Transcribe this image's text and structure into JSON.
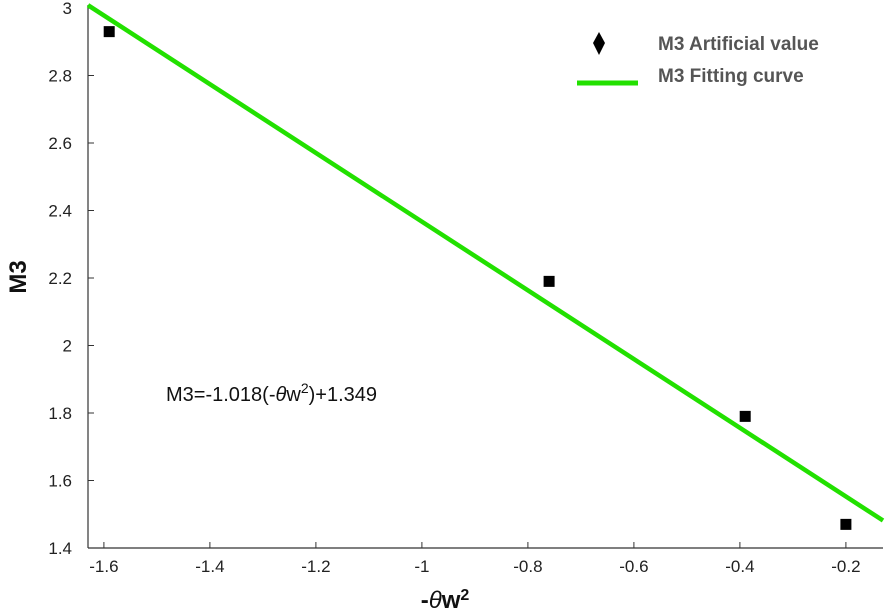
{
  "chart_data": {
    "type": "scatter",
    "title": "",
    "xlabel": "-θw",
    "xlabel_sup": "2",
    "ylabel": "M3",
    "xlim": [
      -1.63,
      -0.13
    ],
    "ylim": [
      1.4,
      3.0
    ],
    "xticks": [
      -1.6,
      -1.4,
      -1.2,
      -1,
      -0.8,
      -0.6,
      -0.4,
      -0.2
    ],
    "xtick_labels": [
      "-1.6",
      "-1.4",
      "-1.2",
      "-1",
      "-0.8",
      "-0.6",
      "-0.4",
      "-0.2"
    ],
    "yticks": [
      1.4,
      1.6,
      1.8,
      2.0,
      2.2,
      2.4,
      2.6,
      2.8,
      3.0
    ],
    "ytick_labels": [
      "1.4",
      "1.6",
      "1.8",
      "2",
      "2.2",
      "2.4",
      "2.6",
      "2.8",
      "3"
    ],
    "grid": false,
    "legend_position": "top-right",
    "series": [
      {
        "name": "M3 Artificial value",
        "kind": "scatter",
        "marker": "square",
        "legend_marker": "diamond",
        "color": "#000000",
        "x": [
          -1.59,
          -0.76,
          -0.39,
          -0.2
        ],
        "y": [
          2.93,
          2.19,
          1.79,
          1.47
        ]
      },
      {
        "name": "M3 Fitting curve",
        "kind": "line",
        "color": "#22e000",
        "slope": -1.018,
        "intercept": 1.349,
        "x_range": [
          -1.63,
          -0.13
        ]
      }
    ],
    "annotation": {
      "prefix": "M3=-1.018(-",
      "theta": "θ",
      "w": "w",
      "sup": "2",
      "suffix": ")+1.349"
    }
  }
}
